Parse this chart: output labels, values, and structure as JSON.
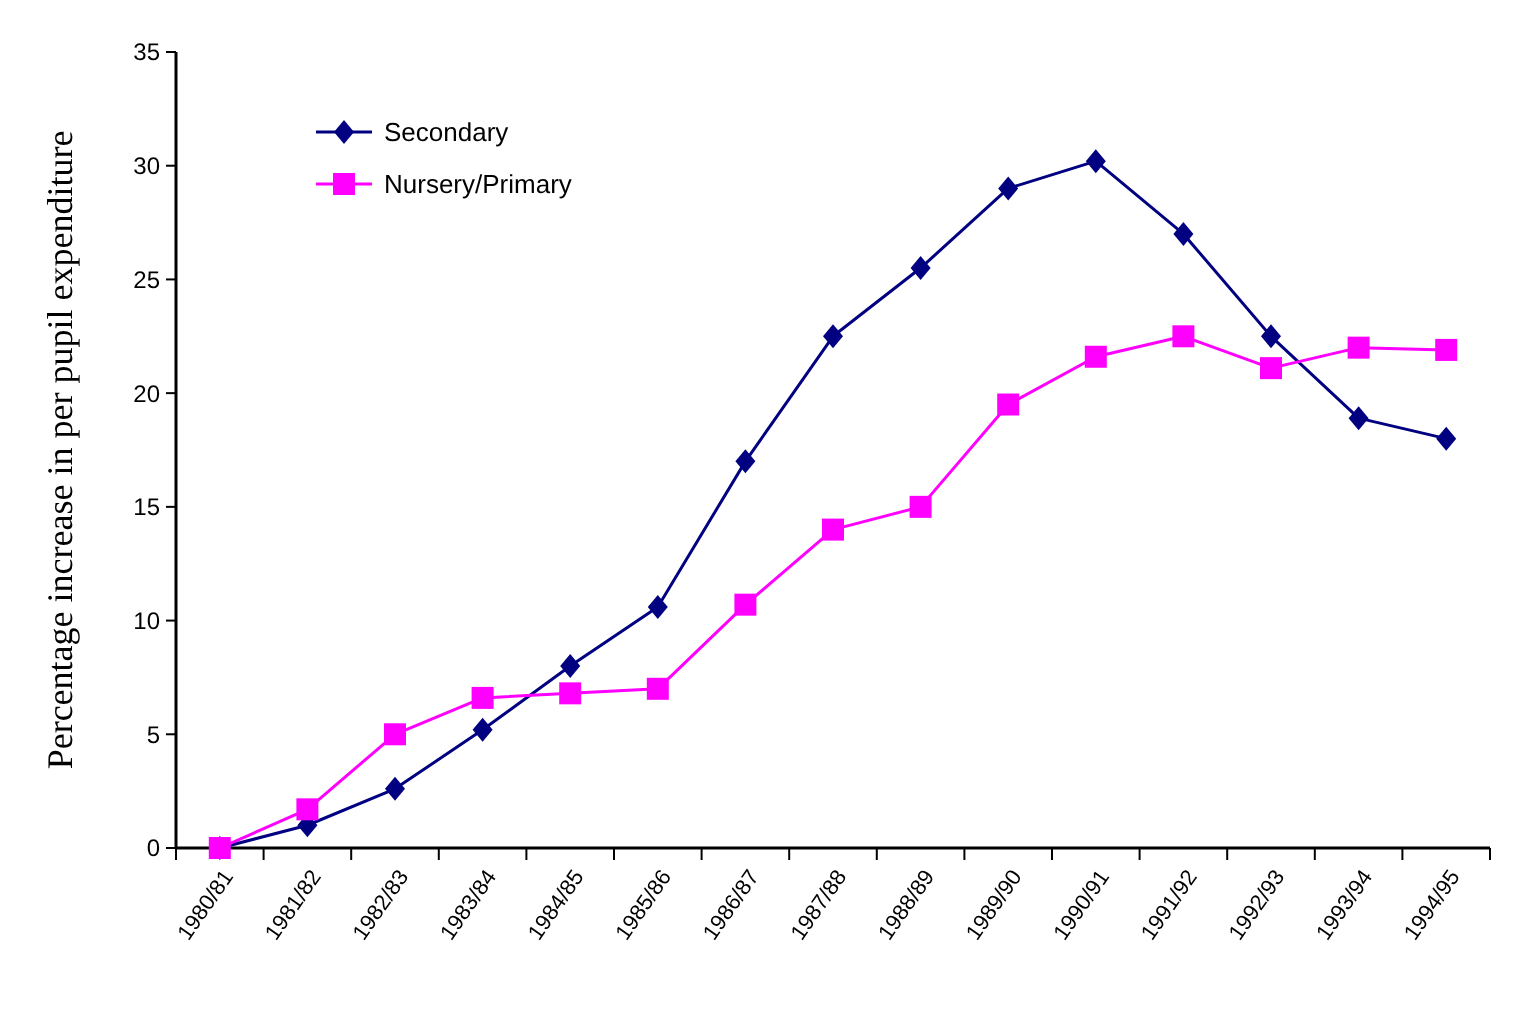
{
  "chart_data": {
    "type": "line",
    "ylabel": "Percentage increase in per pupil expenditure",
    "categories": [
      "1980/81",
      "1981/82",
      "1982/83",
      "1983/84",
      "1984/85",
      "1985/86",
      "1986/87",
      "1987/88",
      "1988/89",
      "1989/90",
      "1990/91",
      "1991/92",
      "1992/93",
      "1993/94",
      "1994/95"
    ],
    "series": [
      {
        "name": "Secondary",
        "color": "#000080",
        "marker": "diamond",
        "values": [
          0,
          1,
          2.6,
          5.2,
          8,
          10.6,
          17,
          22.5,
          25.5,
          29,
          30.2,
          27,
          22.5,
          18.9,
          18
        ]
      },
      {
        "name": "Nursery/Primary",
        "color": "#ff00ff",
        "marker": "square",
        "values": [
          0,
          1.7,
          5,
          6.6,
          6.8,
          7,
          10.7,
          14,
          15,
          19.5,
          21.6,
          22.5,
          21.1,
          22,
          21.9
        ]
      }
    ],
    "ylim": [
      0,
      35
    ],
    "yticks": [
      0,
      5,
      10,
      15,
      20,
      25,
      30,
      35
    ],
    "grid": false,
    "legend": "top left"
  }
}
